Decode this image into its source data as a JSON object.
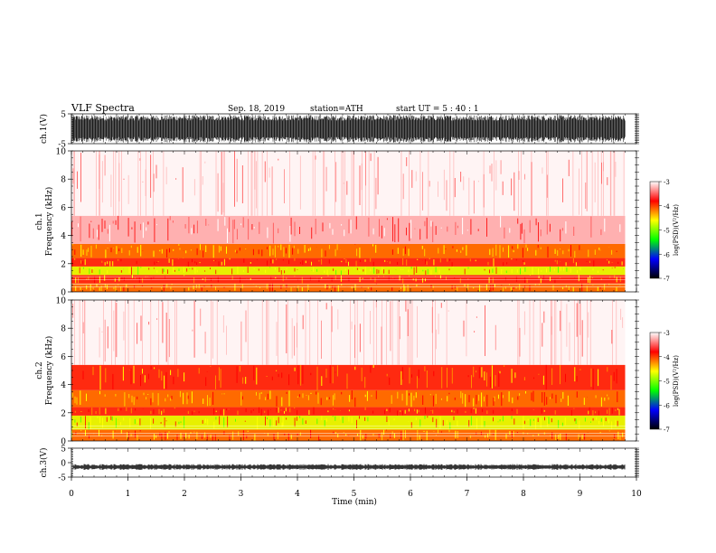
{
  "header": {
    "title": "VLF  Spectra",
    "date": "Sep. 18, 2019",
    "station": "station=ATH",
    "start": "start  UT  =    5 : 40 : 1"
  },
  "chart_data": [
    {
      "type": "line",
      "panel": "ch1-waveform",
      "ylabel": "ch.1(V)",
      "ylim": [
        -5,
        5
      ],
      "y_ticks": [
        "5",
        "-5"
      ],
      "xlim": [
        0,
        10
      ],
      "data_extent_min": 9.8,
      "style": "dense black waveform saturating near ±4.5 V"
    },
    {
      "type": "heatmap",
      "panel": "ch1-spectrogram",
      "ylabel_line1": "ch.1",
      "ylabel_line2": "Frequency  (kHz)",
      "ylim": [
        0,
        10
      ],
      "y_ticks": [
        "0",
        "2",
        "4",
        "6",
        "8",
        "10"
      ],
      "xlim": [
        0,
        10
      ],
      "bands_khz": [
        {
          "from": 0.0,
          "to": 0.6,
          "level": "yellow-red"
        },
        {
          "from": 0.6,
          "to": 1.2,
          "level": "red"
        },
        {
          "from": 1.2,
          "to": 1.8,
          "level": "yellow-green"
        },
        {
          "from": 1.8,
          "to": 2.4,
          "level": "red"
        },
        {
          "from": 2.4,
          "to": 3.4,
          "level": "yellow-red"
        },
        {
          "from": 3.4,
          "to": 5.4,
          "level": "light-red"
        },
        {
          "from": 5.4,
          "to": 10.0,
          "level": "pale-pink"
        }
      ],
      "colorbar": {
        "label": "log(PSD)(V²/Hz)",
        "ticks": [
          "-3",
          "-4",
          "-5",
          "-6",
          "-7"
        ],
        "colors": [
          "#ffffff",
          "#ff0000",
          "#ffff00",
          "#00ff00",
          "#0000ff",
          "#000000"
        ]
      }
    },
    {
      "type": "heatmap",
      "panel": "ch2-spectrogram",
      "ylabel_line1": "ch.2",
      "ylabel_line2": "Frequency  (kHz)",
      "ylim": [
        0,
        10
      ],
      "y_ticks": [
        "0",
        "2",
        "4",
        "6",
        "8",
        "10"
      ],
      "xlim": [
        0,
        10
      ],
      "bands_khz": [
        {
          "from": 0.0,
          "to": 0.8,
          "level": "yellow-red"
        },
        {
          "from": 0.8,
          "to": 1.8,
          "level": "yellow-green"
        },
        {
          "from": 1.8,
          "to": 2.4,
          "level": "red"
        },
        {
          "from": 2.4,
          "to": 3.6,
          "level": "yellow-red"
        },
        {
          "from": 3.6,
          "to": 5.4,
          "level": "red"
        },
        {
          "from": 5.4,
          "to": 10.0,
          "level": "pale-pink"
        }
      ],
      "colorbar": {
        "label": "log(PSD)(V²/Hz)",
        "ticks": [
          "-3",
          "-4",
          "-5",
          "-6",
          "-7"
        ],
        "colors": [
          "#ffffff",
          "#ff0000",
          "#ffff00",
          "#00ff00",
          "#0000ff",
          "#000000"
        ]
      }
    },
    {
      "type": "line",
      "panel": "ch3-waveform",
      "ylabel": "ch.3(V)",
      "ylim": [
        -5,
        5
      ],
      "y_ticks": [
        "5",
        "0",
        "-5"
      ],
      "xlim": [
        0,
        10
      ],
      "baseline_value": -1.5,
      "style": "flat dashed-looking trace near -1.5 V"
    }
  ],
  "x_axis": {
    "label": "Time  (min)",
    "ticks": [
      "0",
      "1",
      "2",
      "3",
      "4",
      "5",
      "6",
      "7",
      "8",
      "9",
      "10"
    ]
  }
}
